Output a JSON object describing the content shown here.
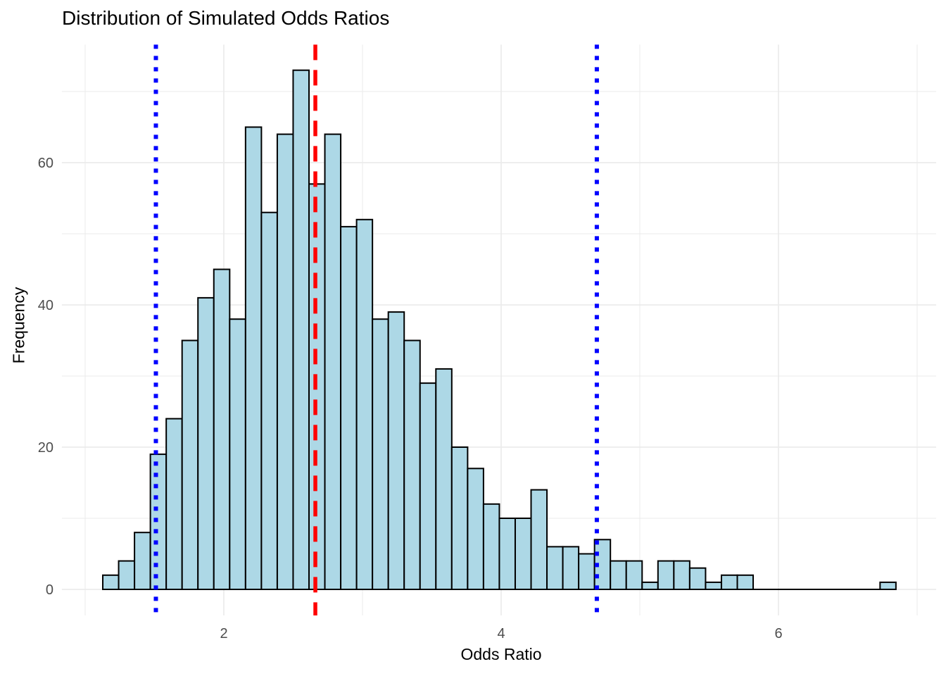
{
  "chart_data": {
    "type": "bar",
    "subtype": "histogram",
    "title": "Distribution of Simulated Odds Ratios",
    "xlabel": "Odds Ratio",
    "ylabel": "Frequency",
    "bin_start": 1.127,
    "bin_width": 0.1144,
    "counts": [
      2,
      4,
      8,
      19,
      24,
      35,
      41,
      45,
      38,
      65,
      53,
      64,
      73,
      57,
      64,
      51,
      52,
      38,
      39,
      35,
      29,
      31,
      20,
      17,
      12,
      10,
      10,
      14,
      6,
      6,
      5,
      7,
      4,
      4,
      1,
      4,
      4,
      3,
      1,
      2,
      2,
      0,
      0,
      0,
      0,
      0,
      0,
      0,
      0,
      1
    ],
    "x_ticks": [
      {
        "value": 2,
        "label": "2"
      },
      {
        "value": 4,
        "label": "4"
      },
      {
        "value": 6,
        "label": "6"
      }
    ],
    "x_minor_gridlines": [
      1,
      3,
      5,
      7
    ],
    "y_ticks": [
      {
        "value": 0,
        "label": "0"
      },
      {
        "value": 20,
        "label": "20"
      },
      {
        "value": 40,
        "label": "40"
      },
      {
        "value": 60,
        "label": "60"
      }
    ],
    "y_minor_gridlines": [
      10,
      30,
      50,
      70
    ],
    "xlim": [
      0.832,
      7.137
    ],
    "ylim": [
      -3.66,
      76.6
    ],
    "grid": true,
    "legend": "none",
    "reference_lines": [
      {
        "value": 1.51,
        "color": "#0000FF",
        "pattern": "dotted"
      },
      {
        "value": 4.69,
        "color": "#0000FF",
        "pattern": "dotted"
      },
      {
        "value": 2.66,
        "color": "#FF0000",
        "pattern": "dashed"
      }
    ],
    "bar_fill": "#ADD8E6",
    "bar_stroke": "#000000",
    "grid_color": "#EBEBEB",
    "tick_label_color": "#4D4D4D"
  }
}
